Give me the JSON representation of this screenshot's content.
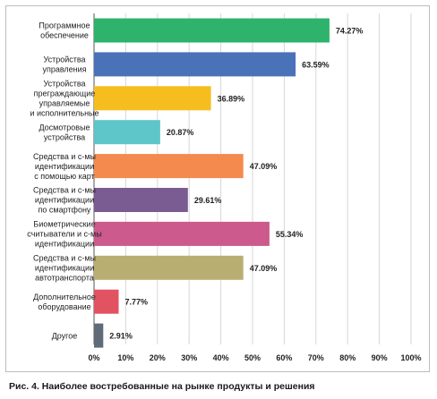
{
  "caption": "Рис. 4. Наиболее востребованные на рынке продукты и решения",
  "chart_data": {
    "type": "bar",
    "orientation": "horizontal",
    "title": "",
    "xlabel": "",
    "ylabel": "",
    "xlim": [
      0,
      100
    ],
    "grid": true,
    "ticks": [
      "0%",
      "10%",
      "20%",
      "30%",
      "40%",
      "50%",
      "60%",
      "70%",
      "80%",
      "90%",
      "100%"
    ],
    "categories": [
      [
        "Программное",
        "обеспечение"
      ],
      [
        "Устройства",
        "управления"
      ],
      [
        "Устройства",
        "преграждающие",
        "управляемые",
        "и исполнительные"
      ],
      [
        "Досмотровые",
        "устройства"
      ],
      [
        "Средства и с-мы",
        "идентификации",
        "с помощью карт"
      ],
      [
        "Средства и с-мы",
        "идентификации",
        "по смартфону"
      ],
      [
        "Биометрические",
        "считыватели и с-мы",
        "идентификации"
      ],
      [
        "Средства и с-мы",
        "идентификации",
        "автотранспорта"
      ],
      [
        "Дополнительное",
        "оборудование"
      ],
      [
        "Другое"
      ]
    ],
    "values": [
      74.27,
      63.59,
      36.89,
      20.87,
      47.09,
      29.61,
      55.34,
      47.09,
      7.77,
      2.91
    ],
    "value_labels": [
      "74.27%",
      "63.59%",
      "36.89%",
      "20.87%",
      "47.09%",
      "29.61%",
      "55.34%",
      "47.09%",
      "7.77%",
      "2.91%"
    ],
    "colors": [
      "#2db36b",
      "#4a72b8",
      "#f6bd1e",
      "#5ec6c8",
      "#f48a4e",
      "#7a5b92",
      "#cc5a8c",
      "#b9ae72",
      "#e15361",
      "#5f6b78"
    ]
  }
}
